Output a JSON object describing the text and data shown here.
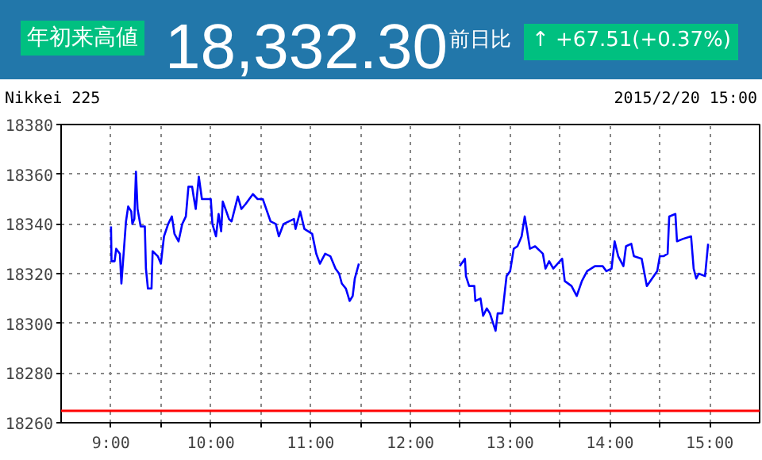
{
  "chart_data": {
    "type": "line",
    "title": "Nikkei 225",
    "subtitle": "2015/2/20 15:00",
    "annotations": [
      "年初来高値",
      "18,332.30",
      "前日比",
      "↑ +67.51(+0.37%)"
    ],
    "x": [
      9.0,
      9.005,
      9.036,
      9.052,
      9.089,
      9.104,
      9.13,
      9.15,
      9.172,
      9.203,
      9.214,
      9.234,
      9.25,
      9.266,
      9.297,
      9.339,
      9.35,
      9.37,
      9.406,
      9.417,
      9.469,
      9.5,
      9.531,
      9.573,
      9.61,
      9.636,
      9.677,
      9.714,
      9.75,
      9.776,
      9.813,
      9.828,
      9.849,
      9.88,
      9.911,
      10.0,
      10.016,
      10.052,
      10.078,
      10.104,
      10.12,
      10.156,
      10.182,
      10.208,
      10.271,
      10.307,
      10.349,
      10.422,
      10.469,
      10.521,
      10.599,
      10.651,
      10.682,
      10.729,
      10.833,
      10.849,
      10.896,
      10.938,
      11.016,
      11.057,
      11.094,
      11.146,
      11.198,
      11.25,
      11.286,
      11.313,
      11.354,
      11.391,
      11.422,
      11.443,
      11.484,
      12.0,
      12.495,
      12.547,
      12.557,
      12.589,
      12.641,
      12.651,
      12.703,
      12.729,
      12.766,
      12.797,
      12.854,
      12.875,
      12.922,
      12.964,
      13.0,
      13.036,
      13.073,
      13.115,
      13.146,
      13.167,
      13.198,
      13.25,
      13.328,
      13.354,
      13.391,
      13.432,
      13.521,
      13.547,
      13.615,
      13.667,
      13.719,
      13.771,
      13.849,
      13.927,
      13.964,
      14.016,
      14.047,
      14.083,
      14.135,
      14.161,
      14.214,
      14.24,
      14.318,
      14.37,
      14.422,
      14.474,
      14.5,
      14.536,
      14.578,
      14.594,
      14.656,
      14.672,
      14.734,
      14.813,
      14.839,
      14.865,
      14.891,
      14.953,
      14.984
    ],
    "series": [
      {
        "color": "#0000ff",
        "values": [
          18339,
          18325,
          18325,
          18330,
          18328,
          18316,
          18330,
          18341,
          18347,
          18345,
          18340,
          18342,
          18361,
          18346,
          18339,
          18339,
          18322,
          18314,
          18314,
          18329,
          18327,
          18324,
          18335,
          18340,
          18343,
          18336,
          18333,
          18340,
          18343,
          18355,
          18355,
          18351,
          18346,
          18359,
          18350,
          18350,
          18340,
          18335,
          18344,
          18337,
          18349,
          18345,
          18342,
          18341,
          18351,
          18346,
          18348,
          18352,
          18350,
          18350,
          18341,
          18340,
          18335,
          18340,
          18342,
          18338,
          18345,
          18338,
          18336,
          18328,
          18324,
          18328,
          18327,
          18322,
          18320,
          18316,
          18314,
          18309,
          18311,
          18318,
          18324,
          null,
          18323,
          18326,
          18319,
          18315,
          18315,
          18309,
          18310,
          18303,
          18306,
          18304,
          18297,
          18304,
          18304,
          18319,
          18321,
          18330,
          18331,
          18335,
          18343,
          18338,
          18330,
          18331,
          18328,
          18322,
          18325,
          18322,
          18326,
          18317,
          18315,
          18311,
          18317,
          18321,
          18323,
          18323,
          18321,
          18322,
          18333,
          18327,
          18323,
          18331,
          18332,
          18327,
          18326,
          18315,
          18318,
          18321,
          18327,
          18327,
          18328,
          18343,
          18344,
          18333,
          18334,
          18335,
          18322,
          18318,
          18320,
          18319,
          18332
        ]
      }
    ],
    "xlim": [
      8.5,
      15.5
    ],
    "ylim": [
      18260,
      18380
    ],
    "xticks": [
      {
        "value": 9,
        "label": "9:00"
      },
      {
        "value": 9.5,
        "label": null
      },
      {
        "value": 10,
        "label": "10:00"
      },
      {
        "value": 10.5,
        "label": null
      },
      {
        "value": 11,
        "label": "11:00"
      },
      {
        "value": 11.5,
        "label": null
      },
      {
        "value": 12,
        "label": "12:00"
      },
      {
        "value": 12.5,
        "label": null
      },
      {
        "value": 13,
        "label": "13:00"
      },
      {
        "value": 13.5,
        "label": null
      },
      {
        "value": 14,
        "label": "14:00"
      },
      {
        "value": 14.5,
        "label": null
      },
      {
        "value": 15,
        "label": "15:00"
      }
    ],
    "yticks": [
      18260,
      18280,
      18300,
      18320,
      18340,
      18360,
      18380
    ],
    "ref_lines": [
      {
        "axis": "y",
        "value": 18264.79,
        "color": "#ff0000"
      }
    ],
    "grid": true,
    "marker": "none",
    "line_style": "solid"
  }
}
